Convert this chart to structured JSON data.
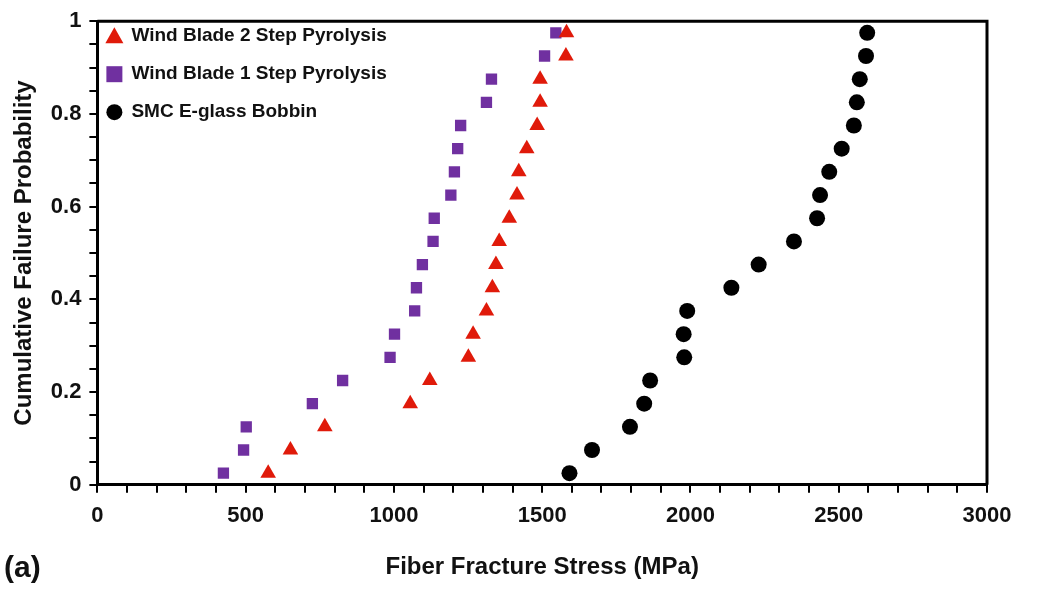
{
  "chart_data": {
    "type": "scatter",
    "xlabel": "Fiber Fracture Stress (MPa)",
    "ylabel": "Cumulative Failure Probability",
    "annotations": [
      "(a)"
    ],
    "xlim": [
      0,
      3000
    ],
    "ylim": [
      0,
      1
    ],
    "xticks": [
      0,
      {
        "value": 100,
        "label": null
      },
      {
        "value": 200,
        "label": null
      },
      {
        "value": 300,
        "label": null
      },
      {
        "value": 400,
        "label": null
      },
      500,
      {
        "value": 600,
        "label": null
      },
      {
        "value": 700,
        "label": null
      },
      {
        "value": 800,
        "label": null
      },
      {
        "value": 900,
        "label": null
      },
      1000,
      {
        "value": 1100,
        "label": null
      },
      {
        "value": 1200,
        "label": null
      },
      {
        "value": 1300,
        "label": null
      },
      {
        "value": 1400,
        "label": null
      },
      1500,
      {
        "value": 1600,
        "label": null
      },
      {
        "value": 1700,
        "label": null
      },
      {
        "value": 1800,
        "label": null
      },
      {
        "value": 1900,
        "label": null
      },
      2000,
      {
        "value": 2100,
        "label": null
      },
      {
        "value": 2200,
        "label": null
      },
      {
        "value": 2300,
        "label": null
      },
      {
        "value": 2400,
        "label": null
      },
      2500,
      {
        "value": 2600,
        "label": null
      },
      {
        "value": 2700,
        "label": null
      },
      {
        "value": 2800,
        "label": null
      },
      {
        "value": 2900,
        "label": null
      },
      3000
    ],
    "yticks": [
      0,
      {
        "value": 0.05,
        "label": null
      },
      {
        "value": 0.1,
        "label": null
      },
      {
        "value": 0.15,
        "label": null
      },
      0.2,
      {
        "value": 0.25,
        "label": null
      },
      {
        "value": 0.3,
        "label": null
      },
      {
        "value": 0.35,
        "label": null
      },
      0.4,
      {
        "value": 0.45,
        "label": null
      },
      {
        "value": 0.5,
        "label": null
      },
      {
        "value": 0.55,
        "label": null
      },
      0.6,
      {
        "value": 0.65,
        "label": null
      },
      {
        "value": 0.7,
        "label": null
      },
      {
        "value": 0.75,
        "label": null
      },
      0.8,
      {
        "value": 0.85,
        "label": null
      },
      {
        "value": 0.9,
        "label": null
      },
      {
        "value": 0.95,
        "label": null
      },
      1
    ],
    "grid": false,
    "legend": "top left",
    "series": [
      {
        "name": "Wind Blade 2 Step Pyrolysis",
        "color": "#e01a0a",
        "marker": "triangle",
        "x": [
          576,
          651,
          767,
          1055,
          1121,
          1251,
          1267,
          1312,
          1332,
          1344,
          1355,
          1389,
          1415,
          1421,
          1448,
          1483,
          1493,
          1493,
          1580,
          1582
        ],
        "values": [
          0.025,
          0.075,
          0.125,
          0.175,
          0.225,
          0.275,
          0.325,
          0.375,
          0.425,
          0.475,
          0.525,
          0.575,
          0.625,
          0.675,
          0.725,
          0.775,
          0.825,
          0.875,
          0.925,
          0.975
        ]
      },
      {
        "name": "Wind Blade 1 Step Pyrolysis",
        "color": "#7030a0",
        "marker": "square",
        "x": [
          425,
          493,
          502,
          725,
          827,
          987,
          1002,
          1070,
          1076,
          1096,
          1132,
          1136,
          1192,
          1204,
          1215,
          1225,
          1312,
          1329,
          1508,
          1546
        ],
        "values": [
          0.025,
          0.075,
          0.125,
          0.175,
          0.225,
          0.275,
          0.325,
          0.375,
          0.425,
          0.475,
          0.525,
          0.575,
          0.625,
          0.675,
          0.725,
          0.775,
          0.825,
          0.875,
          0.925,
          0.975
        ]
      },
      {
        "name": "SMC E-glass Bobbin",
        "color": "#000000",
        "marker": "circle",
        "x": [
          1592,
          1668,
          1796,
          1844,
          1864,
          1979,
          1977,
          1989,
          2138,
          2230,
          2349,
          2427,
          2437,
          2468,
          2510,
          2551,
          2561,
          2571,
          2592,
          2596
        ],
        "values": [
          0.025,
          0.075,
          0.125,
          0.175,
          0.225,
          0.275,
          0.325,
          0.375,
          0.425,
          0.475,
          0.525,
          0.575,
          0.625,
          0.675,
          0.725,
          0.775,
          0.825,
          0.875,
          0.925,
          0.975
        ]
      }
    ]
  }
}
